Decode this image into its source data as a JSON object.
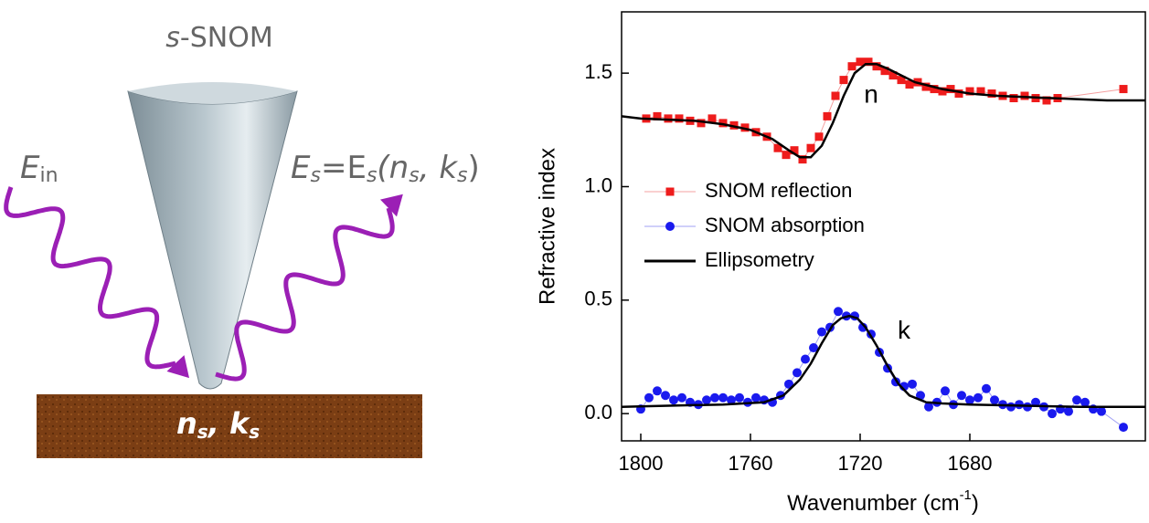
{
  "diagram": {
    "title": [
      "s",
      "-SNOM"
    ],
    "incident": [
      "E",
      "in"
    ],
    "scattered": [
      "E",
      "s",
      "=E",
      "s",
      "(n",
      "s",
      ", k",
      "s",
      ")"
    ],
    "sample": [
      "n",
      "s",
      ", k",
      "s"
    ]
  },
  "chart_data": {
    "type": "scatter",
    "xlabel": [
      "Wavenumber (cm",
      "-1",
      ")"
    ],
    "ylabel": "Refractive index",
    "xlim": [
      1807,
      1616
    ],
    "ylim": [
      -0.12,
      1.77
    ],
    "xticks": [
      1800,
      1760,
      1720,
      1680
    ],
    "yticks": [
      {
        "value": 0,
        "label": "0.0"
      },
      0.5,
      {
        "value": 1,
        "label": "1.0"
      },
      1.5
    ],
    "legend": "center left",
    "annotations": [
      {
        "text": "n",
        "x": 1716,
        "y": 1.4
      },
      {
        "text": "k",
        "x": 1704,
        "y": 0.36
      }
    ],
    "series": [
      {
        "name": "SNOM reflection",
        "color": "#ee1c1c",
        "line_color": "#f4a0a0",
        "marker": "square",
        "x": [
          1798,
          1794,
          1790,
          1786,
          1782,
          1778,
          1774,
          1770,
          1766,
          1762,
          1758,
          1754,
          1750,
          1747,
          1744,
          1741,
          1738,
          1735,
          1732,
          1729,
          1726,
          1723,
          1720,
          1717,
          1714,
          1711,
          1708,
          1705,
          1702,
          1699,
          1696,
          1693,
          1690,
          1687,
          1684,
          1680,
          1676,
          1672,
          1668,
          1664,
          1660,
          1656,
          1652,
          1648,
          1624
        ],
        "values": [
          1.3,
          1.31,
          1.3,
          1.3,
          1.29,
          1.28,
          1.3,
          1.28,
          1.27,
          1.26,
          1.24,
          1.22,
          1.17,
          1.14,
          1.16,
          1.12,
          1.17,
          1.22,
          1.31,
          1.4,
          1.47,
          1.53,
          1.55,
          1.55,
          1.53,
          1.51,
          1.49,
          1.47,
          1.45,
          1.46,
          1.44,
          1.43,
          1.42,
          1.43,
          1.41,
          1.42,
          1.42,
          1.41,
          1.4,
          1.39,
          1.4,
          1.39,
          1.38,
          1.39,
          1.43
        ]
      },
      {
        "name": "SNOM absorption",
        "color": "#1a1aee",
        "line_color": "#a0a0f4",
        "marker": "circle",
        "x": [
          1800,
          1797,
          1794,
          1791,
          1788,
          1785,
          1782,
          1779,
          1776,
          1773,
          1770,
          1767,
          1764,
          1761,
          1758,
          1755,
          1752,
          1749,
          1746,
          1743,
          1740,
          1737,
          1734,
          1731,
          1728,
          1725,
          1722,
          1719,
          1716,
          1713,
          1710,
          1707,
          1704,
          1701,
          1698,
          1695,
          1692,
          1689,
          1686,
          1683,
          1680,
          1677,
          1674,
          1671,
          1668,
          1665,
          1662,
          1659,
          1656,
          1653,
          1650,
          1647,
          1644,
          1641,
          1638,
          1635,
          1632,
          1624
        ],
        "values": [
          0.02,
          0.07,
          0.1,
          0.08,
          0.06,
          0.07,
          0.05,
          0.04,
          0.06,
          0.07,
          0.07,
          0.06,
          0.07,
          0.05,
          0.07,
          0.06,
          0.05,
          0.08,
          0.13,
          0.18,
          0.24,
          0.29,
          0.36,
          0.38,
          0.45,
          0.43,
          0.43,
          0.38,
          0.35,
          0.27,
          0.2,
          0.14,
          0.12,
          0.13,
          0.08,
          0.03,
          0.05,
          0.1,
          0.04,
          0.08,
          0.06,
          0.07,
          0.11,
          0.06,
          0.04,
          0.03,
          0.04,
          0.03,
          0.05,
          0.03,
          0.0,
          0.02,
          0.01,
          0.06,
          0.05,
          0.02,
          0.01,
          -0.06
        ]
      },
      {
        "name": "Ellipsometry",
        "color": "#000000",
        "marker": "none",
        "x": [
          1807,
          1800,
          1790,
          1780,
          1770,
          1760,
          1752,
          1746,
          1742,
          1738,
          1734,
          1730,
          1726,
          1722,
          1718,
          1714,
          1710,
          1705,
          1700,
          1690,
          1680,
          1670,
          1660,
          1650,
          1640,
          1630,
          1616,
          null,
          1807,
          1790,
          1770,
          1755,
          1748,
          1742,
          1738,
          1734,
          1730,
          1727,
          1724,
          1721,
          1718,
          1714,
          1710,
          1706,
          1702,
          1696,
          1690,
          1680,
          1660,
          1640,
          1616
        ],
        "values": [
          1.31,
          1.3,
          1.295,
          1.29,
          1.275,
          1.25,
          1.21,
          1.16,
          1.13,
          1.13,
          1.18,
          1.28,
          1.4,
          1.5,
          1.54,
          1.54,
          1.52,
          1.49,
          1.46,
          1.43,
          1.41,
          1.4,
          1.395,
          1.39,
          1.385,
          1.38,
          1.38,
          null,
          0.03,
          0.035,
          0.04,
          0.05,
          0.08,
          0.15,
          0.22,
          0.31,
          0.39,
          0.42,
          0.43,
          0.42,
          0.38,
          0.3,
          0.21,
          0.13,
          0.08,
          0.05,
          0.045,
          0.04,
          0.035,
          0.03,
          0.03
        ]
      }
    ]
  }
}
